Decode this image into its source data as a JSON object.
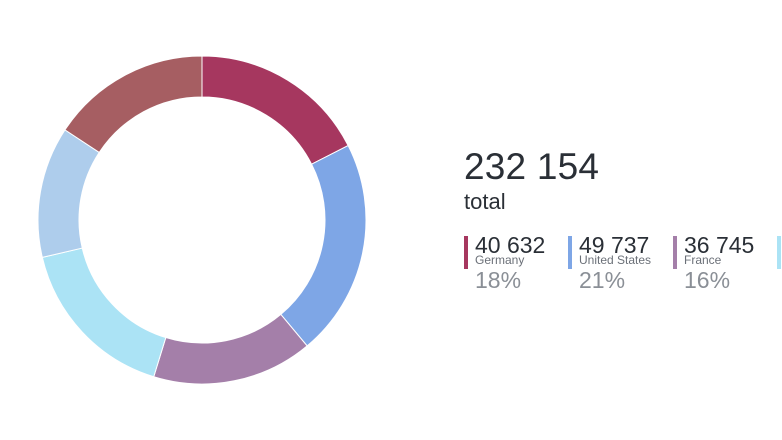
{
  "chart_data": {
    "type": "pie",
    "variant": "donut",
    "total": {
      "value": "232 154",
      "label": "total"
    },
    "segments": [
      {
        "id": "germany",
        "label": "Germany",
        "value": 40632,
        "value_label": "40 632",
        "percent_label": "18%",
        "color": "#a6375f"
      },
      {
        "id": "united-states",
        "label": "United States",
        "value": 49737,
        "value_label": "49 737",
        "percent_label": "21%",
        "color": "#7ea6e6"
      },
      {
        "id": "france",
        "label": "France",
        "value": 36745,
        "value_label": "36 745",
        "percent_label": "16%",
        "color": "#a47fa9"
      },
      {
        "id": "segment-4",
        "label": "",
        "value": 38500,
        "value_label": "",
        "percent_label": "",
        "color": "#abe3f5"
      },
      {
        "id": "segment-5",
        "label": "",
        "value": 30000,
        "value_label": "",
        "percent_label": "",
        "color": "#aecdec"
      },
      {
        "id": "segment-6",
        "label": "",
        "value": 36540,
        "value_label": "",
        "percent_label": "",
        "color": "#a65e62"
      }
    ]
  }
}
